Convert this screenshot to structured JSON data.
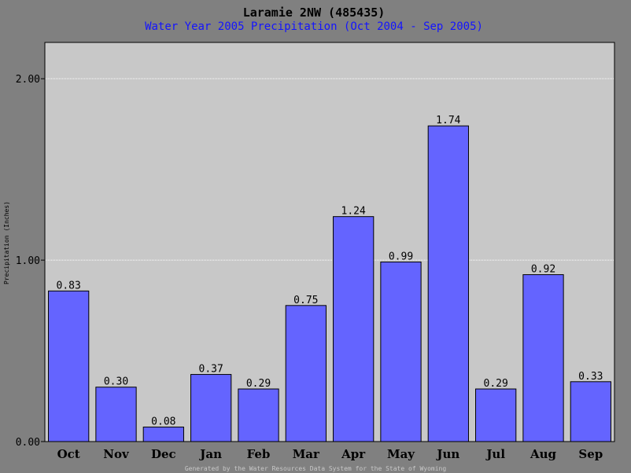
{
  "chart_data": {
    "type": "bar",
    "title": "Laramie 2NW (485435)",
    "subtitle": "Water Year 2005 Precipitation (Oct 2004 - Sep 2005)",
    "xlabel": "",
    "ylabel": "Precipitation (Inches)",
    "categories": [
      "Oct",
      "Nov",
      "Dec",
      "Jan",
      "Feb",
      "Mar",
      "Apr",
      "May",
      "Jun",
      "Jul",
      "Aug",
      "Sep"
    ],
    "values": [
      0.83,
      0.3,
      0.08,
      0.37,
      0.29,
      0.75,
      1.24,
      0.99,
      1.74,
      0.29,
      0.92,
      0.33
    ],
    "value_labels": [
      "0.83",
      "0.30",
      "0.08",
      "0.37",
      "0.29",
      "0.75",
      "1.24",
      "0.99",
      "1.74",
      "0.29",
      "0.92",
      "0.33"
    ],
    "ylim": [
      0,
      2.2
    ],
    "yticks": [
      0.0,
      1.0,
      2.0
    ],
    "ytick_labels": [
      "0.00",
      "1.00",
      "2.00"
    ],
    "grid": true,
    "bar_color": "#6464ff",
    "plot_background": "#c8c8c8",
    "page_background": "#808080",
    "subtitle_color": "#1414ff"
  },
  "footer": "Generated by the Water Resources Data System for the State of Wyoming"
}
